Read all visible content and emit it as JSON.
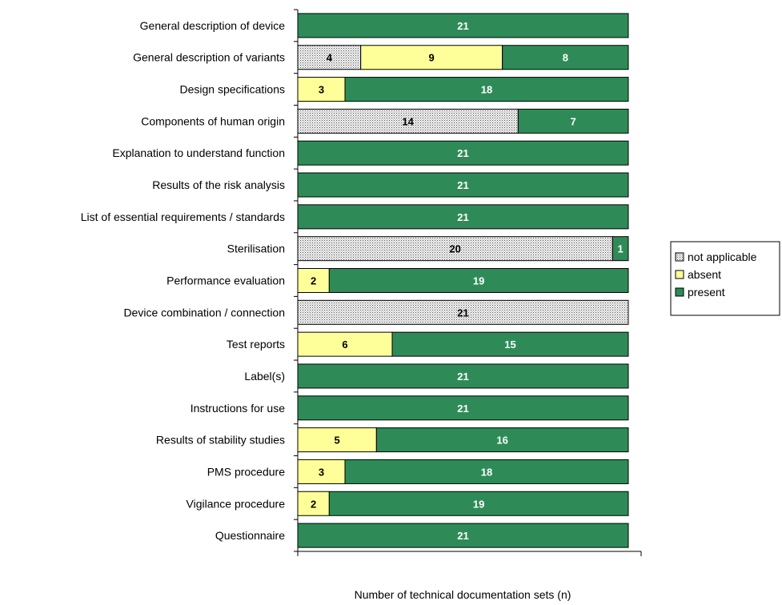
{
  "chart_data": {
    "type": "bar",
    "orientation": "horizontal",
    "stacked": true,
    "xlabel": "Number of technical documentation sets (n)",
    "xlim": [
      0,
      21
    ],
    "grid": false,
    "legend_position": "right",
    "categories": [
      "General description of device",
      "General description of variants",
      "Design specifications",
      "Components of  human origin",
      "Explanation to understand function",
      "Results of the risk analysis",
      "List of essential requirements / standards",
      "Sterilisation",
      "Performance evaluation",
      "Device combination / connection",
      "Test reports",
      "Label(s)",
      "Instructions for use",
      "Results of stability studies",
      "PMS procedure",
      "Vigilance procedure",
      "Questionnaire"
    ],
    "series": [
      {
        "name": "not applicable",
        "color": "#dcdcdc",
        "pattern": "dotted",
        "label_color": "#000000",
        "values": [
          0,
          4,
          0,
          14,
          0,
          0,
          0,
          20,
          0,
          21,
          0,
          0,
          0,
          0,
          0,
          0,
          0
        ]
      },
      {
        "name": "absent",
        "color": "#ffff99",
        "label_color": "#000000",
        "values": [
          0,
          9,
          3,
          0,
          0,
          0,
          0,
          0,
          2,
          0,
          6,
          0,
          0,
          5,
          3,
          2,
          0
        ]
      },
      {
        "name": "present",
        "color": "#2e8b57",
        "label_color": "#ffffff",
        "values": [
          21,
          8,
          18,
          7,
          21,
          21,
          21,
          1,
          19,
          0,
          15,
          21,
          21,
          16,
          18,
          19,
          21
        ]
      }
    ]
  }
}
